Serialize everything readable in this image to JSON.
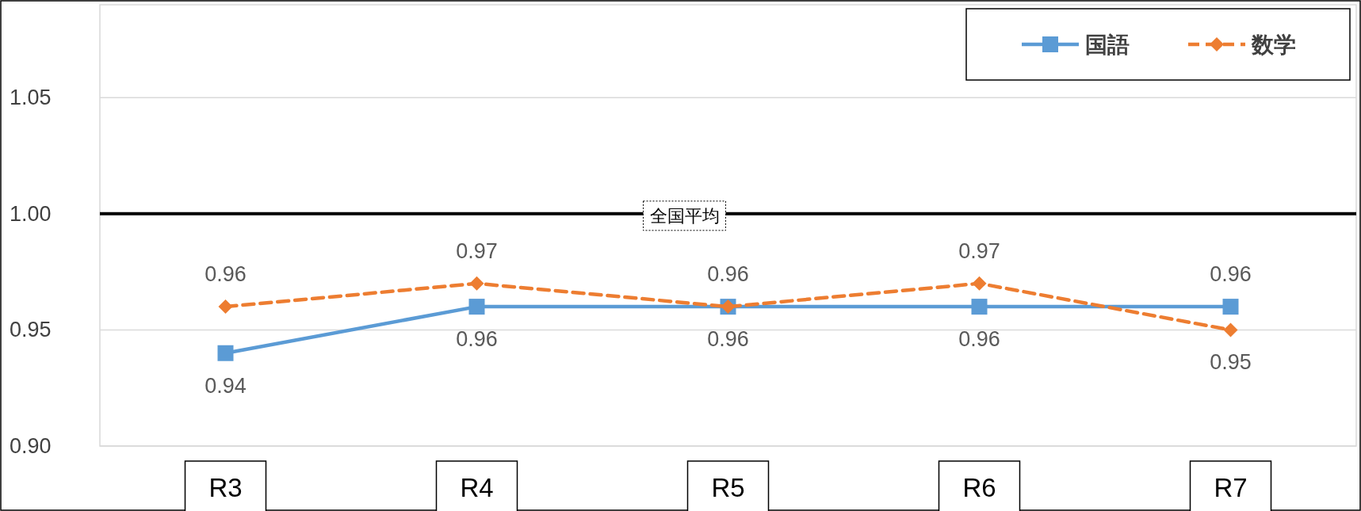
{
  "chart_data": {
    "type": "line",
    "categories": [
      "R3",
      "R4",
      "R5",
      "R6",
      "R7"
    ],
    "series": [
      {
        "name": "国語",
        "color": "#5b9bd5",
        "values": [
          0.94,
          0.96,
          0.96,
          0.96,
          0.96
        ],
        "marker": "square",
        "line_style": "solid"
      },
      {
        "name": "数学",
        "color": "#ed7d31",
        "values": [
          0.96,
          0.97,
          0.96,
          0.97,
          0.95
        ],
        "marker": "diamond",
        "line_style": "dashed"
      }
    ],
    "ylim": [
      0.9,
      1.09
    ],
    "yticks": [
      {
        "value": 0.9,
        "label": "0.90"
      },
      {
        "value": 0.95,
        "label": "0.95"
      },
      {
        "value": 1.0,
        "label": "1.00"
      },
      {
        "value": 1.05,
        "label": "1.05"
      }
    ],
    "grid": "y",
    "legend": "top right",
    "data_labels": true,
    "ref_lines": [
      {
        "axis": "y",
        "value": 1.0,
        "label": "全国平均",
        "color": "#000000"
      }
    ]
  }
}
